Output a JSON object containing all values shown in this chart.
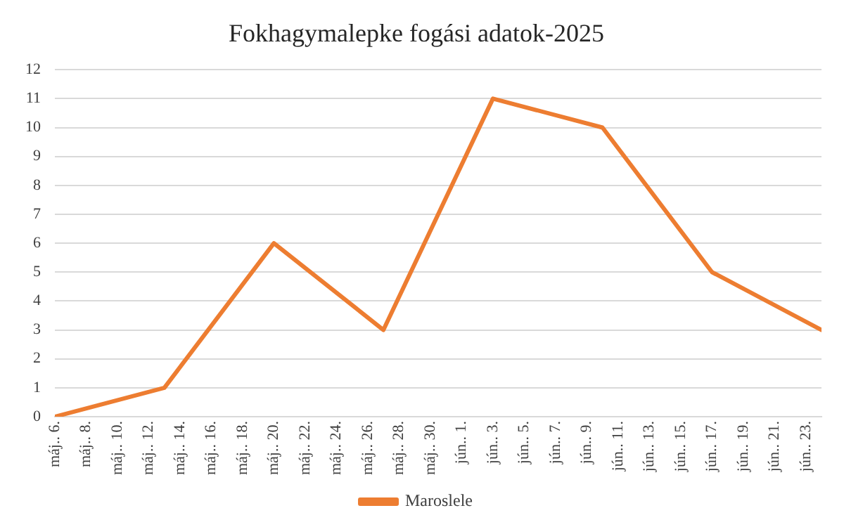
{
  "chart_data": {
    "type": "line",
    "title": "Fokhagymalepke fogási adatok-2025",
    "x": [
      "2025-05-06",
      "2025-05-13",
      "2025-05-20",
      "2025-05-27",
      "2025-06-03",
      "2025-06-10",
      "2025-06-17",
      "2025-06-24"
    ],
    "series": [
      {
        "name": "Maroslele",
        "color": "#ed7d31",
        "values": [
          0,
          1,
          6,
          3,
          11,
          10,
          5,
          3
        ]
      }
    ],
    "xlim": [
      "2025-05-06",
      "2025-06-24"
    ],
    "xticks": [
      {
        "value": "2025-05-06",
        "label": "máj.. 6."
      },
      {
        "value": "2025-05-08",
        "label": "máj.. 8."
      },
      {
        "value": "2025-05-10",
        "label": "máj.. 10."
      },
      {
        "value": "2025-05-12",
        "label": "máj.. 12."
      },
      {
        "value": "2025-05-14",
        "label": "máj.. 14."
      },
      {
        "value": "2025-05-16",
        "label": "máj.. 16."
      },
      {
        "value": "2025-05-18",
        "label": "máj.. 18."
      },
      {
        "value": "2025-05-20",
        "label": "máj.. 20."
      },
      {
        "value": "2025-05-22",
        "label": "máj.. 22."
      },
      {
        "value": "2025-05-24",
        "label": "máj.. 24."
      },
      {
        "value": "2025-05-26",
        "label": "máj.. 26."
      },
      {
        "value": "2025-05-28",
        "label": "máj.. 28."
      },
      {
        "value": "2025-05-30",
        "label": "máj.. 30."
      },
      {
        "value": "2025-06-01",
        "label": "jún.. 1."
      },
      {
        "value": "2025-06-03",
        "label": "jún.. 3."
      },
      {
        "value": "2025-06-05",
        "label": "jún.. 5."
      },
      {
        "value": "2025-06-07",
        "label": "jún.. 7."
      },
      {
        "value": "2025-06-09",
        "label": "jún.. 9."
      },
      {
        "value": "2025-06-11",
        "label": "jún.. 11."
      },
      {
        "value": "2025-06-13",
        "label": "jún.. 13."
      },
      {
        "value": "2025-06-15",
        "label": "jún.. 15."
      },
      {
        "value": "2025-06-17",
        "label": "jún.. 17."
      },
      {
        "value": "2025-06-19",
        "label": "jún.. 19."
      },
      {
        "value": "2025-06-21",
        "label": "jún.. 21."
      },
      {
        "value": "2025-06-23",
        "label": "jún.. 23."
      }
    ],
    "ylim": [
      0,
      12
    ],
    "yticks": [
      0,
      1,
      2,
      3,
      4,
      5,
      6,
      7,
      8,
      9,
      10,
      11,
      12
    ],
    "grid": "y",
    "legend": "bottom",
    "marker": "none",
    "line_style": "solid"
  }
}
